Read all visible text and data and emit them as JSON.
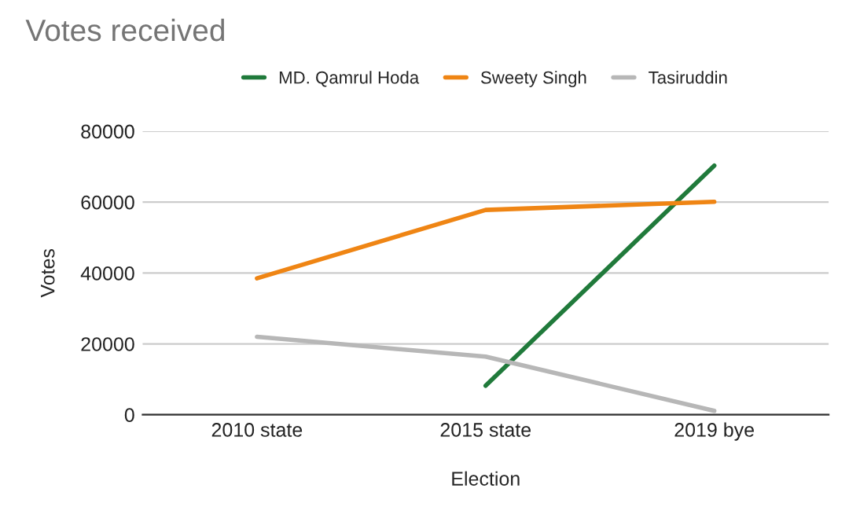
{
  "chart_data": {
    "type": "line",
    "title": "Votes received",
    "xlabel": "Election",
    "ylabel": "Votes",
    "categories": [
      "2010 state",
      "2015 state",
      "2019 bye"
    ],
    "series": [
      {
        "name": "MD. Qamrul Hoda",
        "color": "#207a3b",
        "values": [
          null,
          8200,
          70300
        ]
      },
      {
        "name": "Sweety Singh",
        "color": "#ef8514",
        "values": [
          38500,
          57800,
          60100
        ]
      },
      {
        "name": "Tasiruddin",
        "color": "#b7b7b7",
        "values": [
          22000,
          16400,
          1100
        ]
      }
    ],
    "ylim": [
      0,
      80000
    ],
    "yticks": [
      0,
      20000,
      40000,
      60000,
      80000
    ],
    "grid": "y",
    "legend": "top"
  }
}
